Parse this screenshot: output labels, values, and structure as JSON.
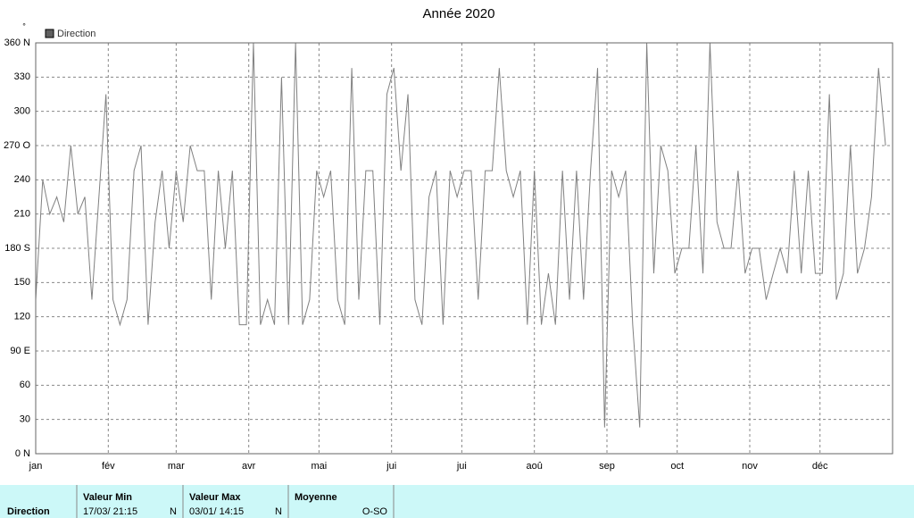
{
  "chart_data": {
    "type": "line",
    "title": "Année 2020",
    "y_unit": "°",
    "legend": "Direction",
    "series": [
      {
        "name": "Direction",
        "color": "#808080",
        "x": [
          0,
          3,
          6,
          9,
          12,
          15,
          18,
          21,
          24,
          27,
          30,
          33,
          36,
          39,
          42,
          45,
          48,
          51,
          54,
          57,
          60,
          63,
          66,
          69,
          72,
          75,
          78,
          81,
          84,
          87,
          90,
          93,
          96,
          99,
          102,
          105,
          108,
          111,
          114,
          117,
          120,
          123,
          126,
          129,
          132,
          135,
          138,
          141,
          144,
          147,
          150,
          153,
          156,
          159,
          162,
          165,
          168,
          171,
          174,
          177,
          180,
          183,
          186,
          189,
          192,
          195,
          198,
          201,
          204,
          207,
          210,
          213,
          216,
          219,
          222,
          225,
          228,
          231,
          234,
          237,
          240,
          243,
          246,
          249,
          252,
          255,
          258,
          261,
          264,
          267,
          270,
          273,
          276,
          279,
          282,
          285,
          288,
          291,
          294,
          297,
          300,
          303,
          306,
          309,
          312,
          315,
          318,
          321,
          324,
          327,
          330,
          333,
          336,
          339,
          342,
          345,
          348,
          351,
          354,
          357,
          360,
          363
        ],
        "values": [
          135,
          240,
          210,
          225,
          203,
          270,
          210,
          225,
          135,
          225,
          315,
          135,
          113,
          135,
          248,
          270,
          113,
          203,
          248,
          180,
          248,
          203,
          270,
          248,
          248,
          135,
          248,
          180,
          248,
          113,
          113,
          360,
          113,
          135,
          113,
          330,
          113,
          360,
          113,
          135,
          248,
          225,
          248,
          135,
          113,
          338,
          135,
          248,
          248,
          113,
          315,
          338,
          248,
          315,
          135,
          113,
          225,
          248,
          113,
          248,
          225,
          248,
          248,
          135,
          248,
          248,
          338,
          248,
          225,
          248,
          113,
          248,
          113,
          158,
          113,
          248,
          135,
          248,
          135,
          248,
          338,
          23,
          248,
          225,
          248,
          113,
          23,
          360,
          158,
          270,
          248,
          158,
          180,
          180,
          270,
          158,
          360,
          203,
          180,
          180,
          248,
          158,
          180,
          180,
          135,
          158,
          180,
          158,
          248,
          158,
          248,
          158,
          158,
          315,
          135,
          158,
          270,
          158,
          180,
          225,
          338,
          270
        ]
      }
    ],
    "xlim": [
      0,
      366
    ],
    "xticks": [
      {
        "value": 0,
        "label": "jan"
      },
      {
        "value": 31,
        "label": "fév"
      },
      {
        "value": 60,
        "label": "mar"
      },
      {
        "value": 91,
        "label": "avr"
      },
      {
        "value": 121,
        "label": "mai"
      },
      {
        "value": 152,
        "label": "jui"
      },
      {
        "value": 182,
        "label": "jui"
      },
      {
        "value": 213,
        "label": "aoû"
      },
      {
        "value": 244,
        "label": "sep"
      },
      {
        "value": 274,
        "label": "oct"
      },
      {
        "value": 305,
        "label": "nov"
      },
      {
        "value": 335,
        "label": "déc"
      }
    ],
    "ylim": [
      0,
      360
    ],
    "yticks": [
      {
        "value": 0,
        "label": "0 N"
      },
      30,
      60,
      {
        "value": 90,
        "label": "90 E"
      },
      120,
      150,
      {
        "value": 180,
        "label": "180 S"
      },
      210,
      240,
      {
        "value": 270,
        "label": "270 O"
      },
      300,
      330,
      {
        "value": 360,
        "label": "360 N"
      }
    ],
    "grid": true
  },
  "summary": {
    "row_label": "Direction",
    "min_header": "Valeur Min",
    "min_date": "17/03/ 21:15",
    "min_dir": "N",
    "max_header": "Valeur Max",
    "max_date": "03/01/ 14:15",
    "max_dir": "N",
    "mean_header": "Moyenne",
    "mean_dir": "O-SO"
  }
}
